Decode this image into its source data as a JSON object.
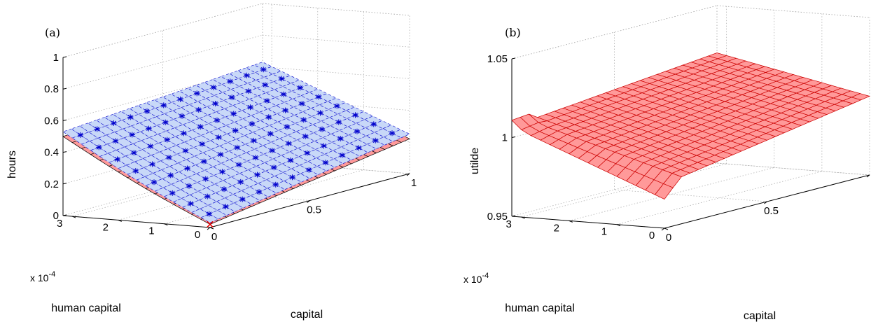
{
  "chart_data": [
    {
      "type": "surface3d",
      "panel_label": "(a)",
      "xlabel": "capital",
      "ylabel": "human capital",
      "zlabel": "hours",
      "y_multiplier": "x 10^-4",
      "xlim": [
        0,
        1
      ],
      "ylim": [
        0,
        3.2
      ],
      "zlim": [
        0,
        1
      ],
      "xticks": [
        "0",
        "0.5",
        "1"
      ],
      "yticks": [
        "0",
        "1",
        "2",
        "3"
      ],
      "zticks": [
        "0",
        "0.2",
        "0.4",
        "0.6",
        "0.8",
        "1"
      ],
      "grid": true,
      "marked_point": {
        "x": 0,
        "y": 0,
        "z": 0.02,
        "marker": "x",
        "color": "#e00000"
      },
      "series": [
        {
          "surface": "lower",
          "style": "solid red mesh",
          "color": "#ff9999",
          "edge_color": "#000000",
          "corners": {
            "x0_y0": 0.02,
            "x1_y0": 0.22,
            "x0_ymax": 0.5,
            "x1_ymax": 0.6
          }
        },
        {
          "surface": "upper",
          "style": "dashed blue mesh with star markers",
          "color": "#c8d8f8",
          "edge_color": "#0000cc",
          "corners": {
            "x0_y0": 0.03,
            "x1_y0": 0.25,
            "x0_ymax": 0.53,
            "x1_ymax": 0.63
          }
        }
      ]
    },
    {
      "type": "surface3d",
      "panel_label": "(b)",
      "xlabel": "capital",
      "ylabel": "human capital",
      "zlabel": "utilde",
      "y_multiplier": "x 10^-4",
      "xlim": [
        0,
        1
      ],
      "ylim": [
        0,
        3.2
      ],
      "zlim": [
        0.95,
        1.05
      ],
      "xticks": [
        "0",
        "0.5",
        "1"
      ],
      "yticks": [
        "0",
        "1",
        "2",
        "3"
      ],
      "zticks": [
        "0.95",
        "1",
        "1.05"
      ],
      "grid": true,
      "series": [
        {
          "surface": "utilde",
          "style": "solid red mesh",
          "color": "#ff9999",
          "edge_color": "#cc0000",
          "corners": {
            "x0_y0": 0.978,
            "x1_y0": 1.0,
            "x0_ymax": 1.007,
            "x1_ymax": 1.02
          }
        }
      ]
    }
  ]
}
